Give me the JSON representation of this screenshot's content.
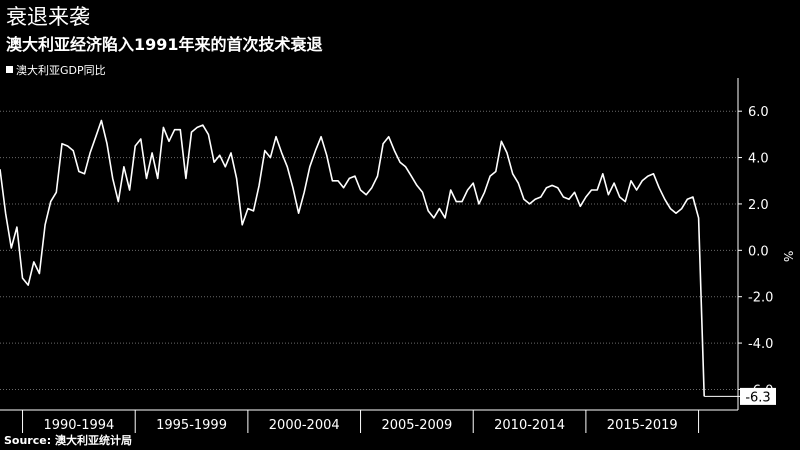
{
  "title": "衰退来袭",
  "subtitle": "澳大利亚经济陷入1991年来的首次技术衰退",
  "legend": {
    "label": "澳大利亚GDP同比"
  },
  "source": "Source: 澳大利亚统计局",
  "colors": {
    "background": "#000000",
    "line": "#ffffff",
    "grid": "#6a6a6a",
    "text": "#ffffff"
  },
  "chart_data": {
    "type": "line",
    "title": "衰退来袭",
    "subtitle": "澳大利亚经济陷入1991年来的首次技术衰退",
    "ylabel": "%",
    "ylim": [
      -6.8,
      7.0
    ],
    "yticks": [
      -6.0,
      -4.0,
      -2.0,
      0.0,
      2.0,
      4.0,
      6.0
    ],
    "ytick_labels": [
      "-6.0",
      "-4.0",
      "-2.0",
      "0.0",
      "2.0",
      "4.0",
      "6.0"
    ],
    "xlim": [
      1989.0,
      2021.75
    ],
    "x_group_labels": [
      {
        "label": "1990-1994",
        "start": 1990,
        "end": 1995
      },
      {
        "label": "1995-1999",
        "start": 1995,
        "end": 2000
      },
      {
        "label": "2000-2004",
        "start": 2000,
        "end": 2005
      },
      {
        "label": "2005-2009",
        "start": 2005,
        "end": 2010
      },
      {
        "label": "2010-2014",
        "start": 2010,
        "end": 2015
      },
      {
        "label": "2015-2019",
        "start": 2015,
        "end": 2020
      }
    ],
    "grid": true,
    "legend_position": "top-left",
    "series": [
      {
        "name": "澳大利亚GDP同比",
        "x": [
          1989.0,
          1989.25,
          1989.5,
          1989.75,
          1990.0,
          1990.25,
          1990.5,
          1990.75,
          1991.0,
          1991.25,
          1991.5,
          1991.75,
          1992.0,
          1992.25,
          1992.5,
          1992.75,
          1993.0,
          1993.25,
          1993.5,
          1993.75,
          1994.0,
          1994.25,
          1994.5,
          1994.75,
          1995.0,
          1995.25,
          1995.5,
          1995.75,
          1996.0,
          1996.25,
          1996.5,
          1996.75,
          1997.0,
          1997.25,
          1997.5,
          1997.75,
          1998.0,
          1998.25,
          1998.5,
          1998.75,
          1999.0,
          1999.25,
          1999.5,
          1999.75,
          2000.0,
          2000.25,
          2000.5,
          2000.75,
          2001.0,
          2001.25,
          2001.5,
          2001.75,
          2002.0,
          2002.25,
          2002.5,
          2002.75,
          2003.0,
          2003.25,
          2003.5,
          2003.75,
          2004.0,
          2004.25,
          2004.5,
          2004.75,
          2005.0,
          2005.25,
          2005.5,
          2005.75,
          2006.0,
          2006.25,
          2006.5,
          2006.75,
          2007.0,
          2007.25,
          2007.5,
          2007.75,
          2008.0,
          2008.25,
          2008.5,
          2008.75,
          2009.0,
          2009.25,
          2009.5,
          2009.75,
          2010.0,
          2010.25,
          2010.5,
          2010.75,
          2011.0,
          2011.25,
          2011.5,
          2011.75,
          2012.0,
          2012.25,
          2012.5,
          2012.75,
          2013.0,
          2013.25,
          2013.5,
          2013.75,
          2014.0,
          2014.25,
          2014.5,
          2014.75,
          2015.0,
          2015.25,
          2015.5,
          2015.75,
          2016.0,
          2016.25,
          2016.5,
          2016.75,
          2017.0,
          2017.25,
          2017.5,
          2017.75,
          2018.0,
          2018.25,
          2018.5,
          2018.75,
          2019.0,
          2019.25,
          2019.5,
          2019.75,
          2020.0,
          2020.25
        ],
        "values": [
          3.5,
          1.6,
          0.1,
          1.0,
          -1.2,
          -1.5,
          -0.5,
          -1.0,
          1.1,
          2.1,
          2.5,
          4.6,
          4.5,
          4.3,
          3.4,
          3.3,
          4.2,
          4.9,
          5.6,
          4.6,
          3.1,
          2.1,
          3.6,
          2.6,
          4.5,
          4.8,
          3.1,
          4.2,
          3.1,
          5.3,
          4.7,
          5.2,
          5.2,
          3.1,
          5.1,
          5.3,
          5.4,
          5.0,
          3.8,
          4.1,
          3.6,
          4.2,
          3.1,
          1.1,
          1.8,
          1.7,
          2.8,
          4.3,
          4.0,
          4.9,
          4.2,
          3.6,
          2.7,
          1.6,
          2.5,
          3.6,
          4.3,
          4.9,
          4.1,
          3.0,
          3.0,
          2.7,
          3.1,
          3.2,
          2.6,
          2.4,
          2.7,
          3.2,
          4.6,
          4.9,
          4.3,
          3.8,
          3.6,
          3.2,
          2.8,
          2.5,
          1.7,
          1.4,
          1.8,
          1.4,
          2.6,
          2.1,
          2.1,
          2.6,
          2.9,
          2.0,
          2.5,
          3.2,
          3.4,
          4.7,
          4.2,
          3.3,
          2.9,
          2.2,
          2.0,
          2.2,
          2.3,
          2.7,
          2.8,
          2.7,
          2.3,
          2.2,
          2.5,
          1.9,
          2.3,
          2.6,
          2.6,
          3.3,
          2.4,
          2.9,
          2.3,
          2.1,
          3.0,
          2.6,
          3.0,
          3.2,
          3.3,
          2.7,
          2.2,
          1.8,
          1.6,
          1.8,
          2.2,
          2.3,
          1.4,
          -6.3
        ]
      }
    ],
    "annotations": [
      {
        "text": "-6.3",
        "x": 2020.25,
        "y": -6.3
      }
    ]
  }
}
